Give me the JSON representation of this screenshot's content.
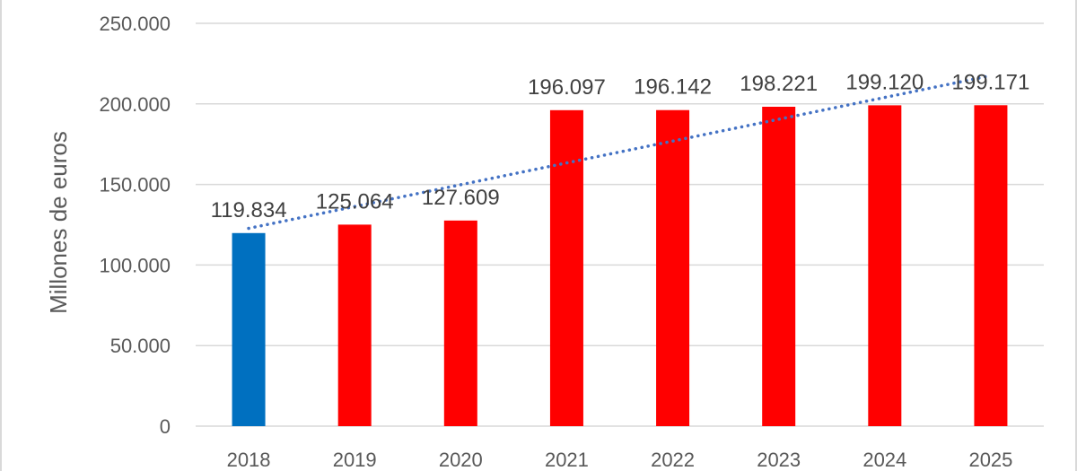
{
  "chart_data": {
    "type": "bar",
    "categories": [
      "2018",
      "2019",
      "2020",
      "2021",
      "2022",
      "2023",
      "2024",
      "2025"
    ],
    "values": [
      119834,
      125064,
      127609,
      196097,
      196142,
      198221,
      199120,
      199171
    ],
    "data_labels": [
      "119.834",
      "125.064",
      "127.609",
      "196.097",
      "196.142",
      "198.221",
      "199.120",
      "199.171"
    ],
    "bar_colors": [
      "#0070c0",
      "#ff0000",
      "#ff0000",
      "#ff0000",
      "#ff0000",
      "#ff0000",
      "#ff0000",
      "#ff0000"
    ],
    "ylabel": "Millones de euros",
    "xlabel": "",
    "ylim": [
      0,
      250000
    ],
    "yticks": [
      0,
      50000,
      100000,
      150000,
      200000,
      250000
    ],
    "ytick_labels": [
      "0",
      "50.000",
      "100.000",
      "150.000",
      "200.000",
      "250.000"
    ],
    "grid": true,
    "grid_color": "#d9d9d9",
    "trendline": {
      "type": "linear",
      "style": "dotted",
      "color": "#4472c4"
    }
  }
}
